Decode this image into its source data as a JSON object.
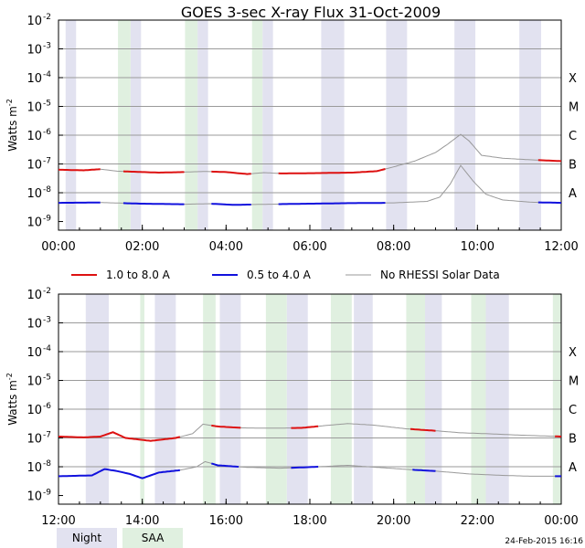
{
  "chart_data": {
    "type": "line",
    "title": "GOES 3-sec X-ray Flux   31-Oct-2009",
    "ylabel_base": "Watts m",
    "ylabel_exp": "-2",
    "y_exponents": [
      "-2",
      "-3",
      "-4",
      "-5",
      "-6",
      "-7",
      "-8",
      "-9"
    ],
    "y_log_range": [
      -9.3,
      -2
    ],
    "class_labels": [
      {
        "label": "X",
        "log": -4
      },
      {
        "label": "M",
        "log": -5
      },
      {
        "label": "C",
        "log": -6
      },
      {
        "label": "B",
        "log": -7
      },
      {
        "label": "A",
        "log": -8
      }
    ],
    "legend": [
      {
        "name": "1.0 to 8.0 A",
        "color": "#dd1111"
      },
      {
        "name": "0.5 to 4.0 A",
        "color": "#1111dd"
      },
      {
        "name": "No RHESSI Solar Data",
        "color": "#999999"
      }
    ],
    "region_legend": [
      {
        "name": "Night",
        "color": "#e2e2f0"
      },
      {
        "name": "SAA",
        "color": "#e0f0e0"
      }
    ],
    "timestamp": "24-Feb-2015 16:16",
    "panels": [
      {
        "id": "am",
        "x_range_hours": [
          0,
          12
        ],
        "tick_labels": [
          "00:00",
          "02:00",
          "04:00",
          "06:00",
          "08:00",
          "10:00",
          "12:00"
        ],
        "night": [
          [
            0.17,
            0.42
          ],
          [
            1.72,
            1.97
          ],
          [
            3.32,
            3.57
          ],
          [
            4.87,
            5.12
          ],
          [
            6.27,
            6.82
          ],
          [
            7.82,
            8.32
          ],
          [
            9.45,
            9.95
          ],
          [
            11.0,
            11.52
          ]
        ],
        "saa": [
          [
            1.42,
            1.72
          ],
          [
            3.02,
            3.32
          ],
          [
            4.62,
            4.87
          ]
        ],
        "long_series": [
          {
            "t": 0.0,
            "log": -7.2
          },
          {
            "t": 0.6,
            "log": -7.22
          },
          {
            "t": 1.0,
            "log": -7.18
          },
          {
            "t": 1.4,
            "log": -7.25
          },
          {
            "t": 1.8,
            "log": -7.27
          },
          {
            "t": 2.4,
            "log": -7.3
          },
          {
            "t": 3.0,
            "log": -7.28
          },
          {
            "t": 3.5,
            "log": -7.26
          },
          {
            "t": 4.0,
            "log": -7.28
          },
          {
            "t": 4.5,
            "log": -7.35
          },
          {
            "t": 4.9,
            "log": -7.3
          },
          {
            "t": 5.3,
            "log": -7.33
          },
          {
            "t": 6.0,
            "log": -7.32
          },
          {
            "t": 7.0,
            "log": -7.3
          },
          {
            "t": 7.6,
            "log": -7.25
          },
          {
            "t": 8.0,
            "log": -7.1
          },
          {
            "t": 8.5,
            "log": -6.9
          },
          {
            "t": 9.0,
            "log": -6.6
          },
          {
            "t": 9.3,
            "log": -6.3
          },
          {
            "t": 9.6,
            "log": -5.97
          },
          {
            "t": 9.8,
            "log": -6.2
          },
          {
            "t": 10.1,
            "log": -6.7
          },
          {
            "t": 10.6,
            "log": -6.8
          },
          {
            "t": 11.2,
            "log": -6.85
          },
          {
            "t": 12.0,
            "log": -6.9
          }
        ],
        "short_series": [
          {
            "t": 0.0,
            "log": -8.35
          },
          {
            "t": 1.0,
            "log": -8.34
          },
          {
            "t": 2.0,
            "log": -8.38
          },
          {
            "t": 3.0,
            "log": -8.4
          },
          {
            "t": 3.6,
            "log": -8.38
          },
          {
            "t": 4.2,
            "log": -8.42
          },
          {
            "t": 5.0,
            "log": -8.4
          },
          {
            "t": 6.0,
            "log": -8.38
          },
          {
            "t": 7.0,
            "log": -8.36
          },
          {
            "t": 8.0,
            "log": -8.35
          },
          {
            "t": 8.8,
            "log": -8.3
          },
          {
            "t": 9.1,
            "log": -8.15
          },
          {
            "t": 9.35,
            "log": -7.7
          },
          {
            "t": 9.6,
            "log": -7.05
          },
          {
            "t": 9.9,
            "log": -7.6
          },
          {
            "t": 10.2,
            "log": -8.05
          },
          {
            "t": 10.6,
            "log": -8.25
          },
          {
            "t": 11.3,
            "log": -8.33
          },
          {
            "t": 12.0,
            "log": -8.35
          }
        ],
        "no_data": [
          [
            1.0,
            1.5
          ],
          [
            3.0,
            3.6
          ],
          [
            4.6,
            5.2
          ],
          [
            7.8,
            9.4
          ],
          [
            9.4,
            11.4
          ]
        ]
      },
      {
        "id": "pm",
        "x_range_hours": [
          12,
          24
        ],
        "tick_labels": [
          "12:00",
          "14:00",
          "16:00",
          "18:00",
          "20:00",
          "22:00",
          "00:00"
        ],
        "night": [
          [
            12.65,
            13.2
          ],
          [
            14.3,
            14.8
          ],
          [
            15.85,
            16.35
          ],
          [
            17.45,
            17.95
          ],
          [
            19.05,
            19.5
          ],
          [
            20.6,
            21.15
          ],
          [
            22.2,
            22.75
          ]
        ],
        "saa": [
          [
            13.95,
            14.05
          ],
          [
            15.45,
            15.75
          ],
          [
            16.95,
            17.45
          ],
          [
            18.5,
            19.0
          ],
          [
            20.3,
            20.75
          ],
          [
            21.85,
            22.2
          ],
          [
            23.8,
            24.0
          ]
        ],
        "long_series": [
          {
            "t": 12.0,
            "log": -6.95
          },
          {
            "t": 12.6,
            "log": -6.98
          },
          {
            "t": 13.0,
            "log": -6.95
          },
          {
            "t": 13.3,
            "log": -6.8
          },
          {
            "t": 13.6,
            "log": -7.0
          },
          {
            "t": 14.2,
            "log": -7.1
          },
          {
            "t": 14.8,
            "log": -7.0
          },
          {
            "t": 15.2,
            "log": -6.85
          },
          {
            "t": 15.45,
            "log": -6.52
          },
          {
            "t": 15.8,
            "log": -6.6
          },
          {
            "t": 16.4,
            "log": -6.65
          },
          {
            "t": 17.0,
            "log": -6.66
          },
          {
            "t": 17.8,
            "log": -6.65
          },
          {
            "t": 18.5,
            "log": -6.55
          },
          {
            "t": 18.9,
            "log": -6.5
          },
          {
            "t": 19.5,
            "log": -6.55
          },
          {
            "t": 20.3,
            "log": -6.68
          },
          {
            "t": 21.0,
            "log": -6.75
          },
          {
            "t": 21.6,
            "log": -6.82
          },
          {
            "t": 22.2,
            "log": -6.85
          },
          {
            "t": 23.0,
            "log": -6.9
          },
          {
            "t": 24.0,
            "log": -6.95
          }
        ],
        "short_series": [
          {
            "t": 12.0,
            "log": -8.33
          },
          {
            "t": 12.8,
            "log": -8.3
          },
          {
            "t": 13.1,
            "log": -8.08
          },
          {
            "t": 13.4,
            "log": -8.15
          },
          {
            "t": 13.7,
            "log": -8.25
          },
          {
            "t": 14.0,
            "log": -8.4
          },
          {
            "t": 14.4,
            "log": -8.2
          },
          {
            "t": 14.9,
            "log": -8.12
          },
          {
            "t": 15.3,
            "log": -8.0
          },
          {
            "t": 15.5,
            "log": -7.82
          },
          {
            "t": 15.8,
            "log": -7.95
          },
          {
            "t": 16.5,
            "log": -8.02
          },
          {
            "t": 17.3,
            "log": -8.05
          },
          {
            "t": 18.2,
            "log": -8.0
          },
          {
            "t": 18.9,
            "log": -7.95
          },
          {
            "t": 19.6,
            "log": -8.02
          },
          {
            "t": 20.4,
            "log": -8.1
          },
          {
            "t": 21.0,
            "log": -8.15
          },
          {
            "t": 21.8,
            "log": -8.25
          },
          {
            "t": 22.6,
            "log": -8.3
          },
          {
            "t": 23.3,
            "log": -8.33
          },
          {
            "t": 24.0,
            "log": -8.33
          }
        ],
        "no_data": [
          [
            14.9,
            15.6
          ],
          [
            16.3,
            17.5
          ],
          [
            18.2,
            19.4
          ],
          [
            19.4,
            20.4
          ],
          [
            21.0,
            22.4
          ],
          [
            22.4,
            23.8
          ]
        ]
      }
    ]
  }
}
